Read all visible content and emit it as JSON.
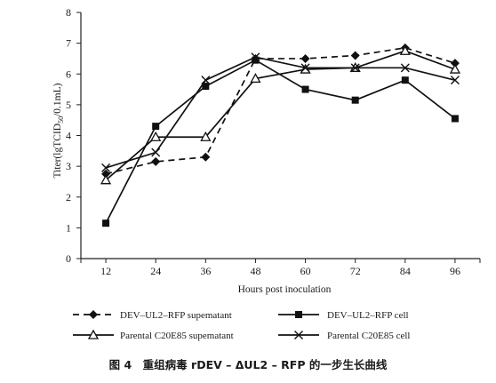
{
  "chart_data": {
    "type": "line",
    "xlabel": "Hours post inoculation",
    "ylabel": "Titer(lgTCID50/0.1mL)",
    "ylabel_main": "Titer(lgTCID",
    "ylabel_sub": "50",
    "ylabel_tail": "/0.1mL)",
    "x": [
      12,
      24,
      36,
      48,
      60,
      72,
      84,
      96
    ],
    "ylim": [
      0,
      8
    ],
    "yticks": [
      0,
      1,
      2,
      3,
      4,
      5,
      6,
      7,
      8
    ],
    "series": [
      {
        "name": "DEV–UL2–RFP supematant",
        "values": [
          2.75,
          3.15,
          3.3,
          6.5,
          6.5,
          6.6,
          6.85,
          6.35
        ],
        "marker": "diamond",
        "dash": "dashed"
      },
      {
        "name": "DEV–UL2–RFP cell",
        "values": [
          1.15,
          4.3,
          5.6,
          6.45,
          5.5,
          5.15,
          5.8,
          4.55
        ],
        "marker": "square",
        "dash": "solid"
      },
      {
        "name": "Parental C20E85  supematant",
        "values": [
          2.55,
          3.95,
          3.95,
          5.85,
          6.15,
          6.2,
          6.75,
          6.15
        ],
        "marker": "triangle",
        "dash": "solid"
      },
      {
        "name": "Parental C20E85 cell",
        "values": [
          2.95,
          3.45,
          5.8,
          6.55,
          6.2,
          6.2,
          6.2,
          5.8
        ],
        "marker": "x",
        "dash": "solid"
      }
    ],
    "legend_position": "bottom",
    "grid": false
  },
  "caption": "图 4　重组病毒 rDEV – ΔUL2 – RFP 的一步生长曲线"
}
